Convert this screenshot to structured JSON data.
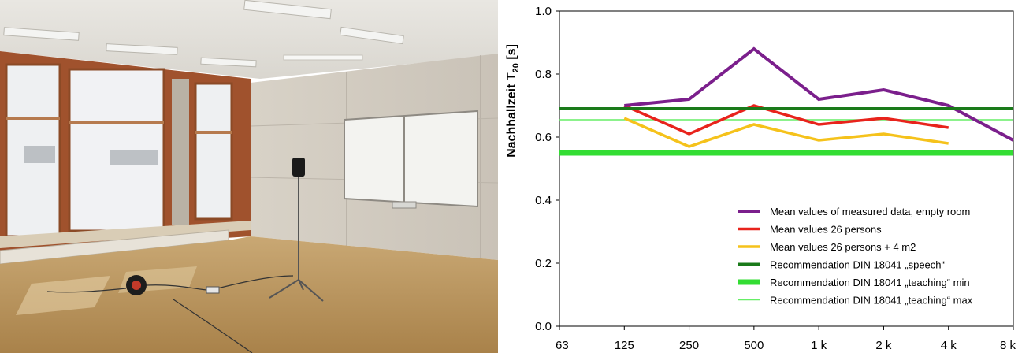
{
  "photo": {
    "scene": "classroom-with-measurement-loudspeaker"
  },
  "chart_data": {
    "type": "line",
    "ylabel_main": "Nachhallzeit  T",
    "ylabel_sub": "20",
    "ylabel_unit": " [s]",
    "ylim": [
      0.0,
      1.0
    ],
    "yticks": [
      "0.0",
      "0.2",
      "0.4",
      "0.6",
      "0.8",
      "1.0"
    ],
    "ytick_values": [
      0.0,
      0.2,
      0.4,
      0.6,
      0.8,
      1.0
    ],
    "x_categories": [
      "63",
      "125",
      "250",
      "500",
      "1 k",
      "2 k",
      "4 k",
      "8 k"
    ],
    "grid": false,
    "legend_position": "bottom-right",
    "series": [
      {
        "name": "Mean values of measured data, empty room",
        "color": "#7b1f8c",
        "width": 4,
        "x_index": [
          1,
          2,
          3,
          4,
          5,
          6,
          7
        ],
        "values": [
          0.7,
          0.72,
          0.88,
          0.72,
          0.75,
          0.7,
          0.59
        ]
      },
      {
        "name": "Mean values 26 persons",
        "color": "#e8231c",
        "width": 3.5,
        "x_index": [
          1,
          2,
          3,
          4,
          5,
          6
        ],
        "values": [
          0.7,
          0.61,
          0.7,
          0.64,
          0.66,
          0.63
        ]
      },
      {
        "name": "Mean values 26 persons + 4 m2",
        "color": "#f5c21b",
        "width": 3.5,
        "x_index": [
          1,
          2,
          3,
          4,
          5,
          6
        ],
        "values": [
          0.66,
          0.57,
          0.64,
          0.59,
          0.61,
          0.58
        ]
      },
      {
        "name": "Recommendation DIN 18041 „speech“",
        "color": "#1a7a1a",
        "width": 4,
        "x_index": [
          0,
          7
        ],
        "values": [
          0.69,
          0.69
        ]
      },
      {
        "name": "Recommendation DIN 18041 „teaching“ min",
        "color": "#33dd33",
        "width": 7,
        "x_index": [
          0,
          7
        ],
        "values": [
          0.55,
          0.55
        ]
      },
      {
        "name": "Recommendation DIN 18041 „teaching“ max",
        "color": "#66ee66",
        "width": 1.5,
        "x_index": [
          0,
          7
        ],
        "values": [
          0.655,
          0.655
        ]
      }
    ]
  }
}
